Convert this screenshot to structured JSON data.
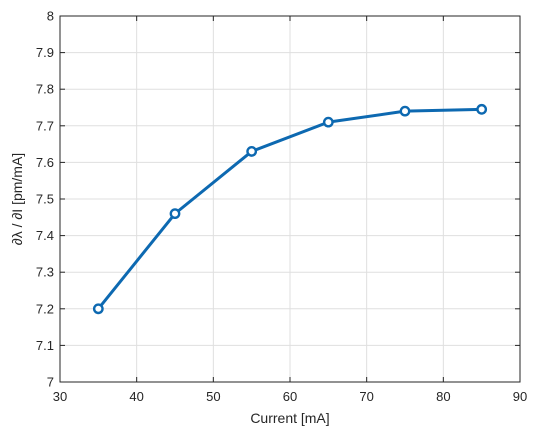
{
  "chart_data": {
    "type": "line",
    "title": "",
    "xlabel": "Current [mA]",
    "ylabel": "∂λ / ∂I [pm/mA]",
    "xlim": [
      30,
      90
    ],
    "ylim": [
      7,
      8
    ],
    "xticks": [
      30,
      40,
      50,
      60,
      70,
      80,
      90
    ],
    "yticks": [
      7,
      7.1,
      7.2,
      7.3,
      7.4,
      7.5,
      7.6,
      7.7,
      7.8,
      7.9,
      8
    ],
    "xtick_labels": [
      "30",
      "40",
      "50",
      "60",
      "70",
      "80",
      "90"
    ],
    "ytick_labels": [
      "7",
      "7.1",
      "7.2",
      "7.3",
      "7.4",
      "7.5",
      "7.6",
      "7.7",
      "7.8",
      "7.9",
      "8"
    ],
    "grid": true,
    "x": [
      35,
      45,
      55,
      65,
      75,
      85
    ],
    "series": [
      {
        "values": [
          7.2,
          7.46,
          7.63,
          7.71,
          7.74,
          7.745
        ],
        "color": "#0d69b1",
        "marker": "circle"
      }
    ]
  }
}
